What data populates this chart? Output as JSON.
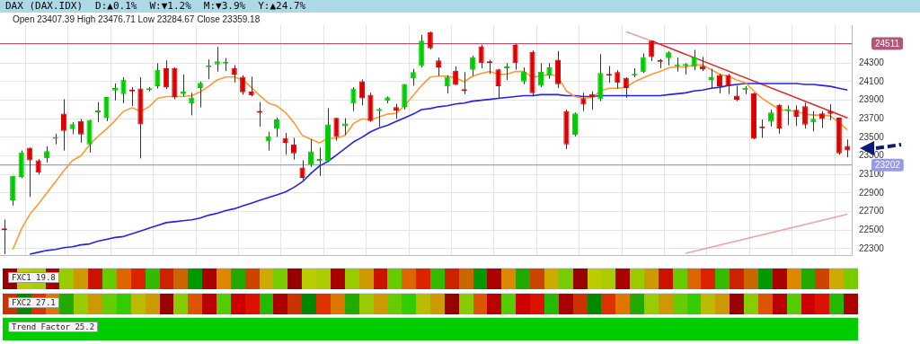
{
  "chart_data": [
    {
      "type": "candlestick",
      "title": "DAX (DAX.IDX)",
      "subtitle": "Open 23407.39  High 23476.71  Low 23284.67  Close 23359.18",
      "annotations": [
        "D:▲0.1%",
        "W:▼1.2%",
        "M:▼3.9%",
        "Y:▲24.7%"
      ],
      "categories": [
        null,
        null,
        null,
        null,
        null,
        null,
        null,
        null,
        null,
        null,
        null,
        null,
        null,
        null,
        null,
        null,
        null,
        null,
        null,
        null,
        null,
        null,
        null,
        null,
        null,
        null,
        null,
        null,
        null,
        null,
        null,
        null,
        null,
        null,
        null,
        null,
        null,
        null,
        null,
        null,
        null,
        null,
        null,
        null,
        null,
        null,
        null,
        null,
        null,
        null,
        null,
        null,
        null,
        null,
        null,
        null,
        null,
        null,
        null,
        null,
        null,
        null,
        null,
        null,
        null,
        null,
        null,
        null,
        null,
        null,
        null,
        null,
        null,
        null,
        null,
        null,
        null,
        null,
        null,
        null,
        null,
        null,
        null,
        null,
        null,
        null,
        null,
        null,
        null,
        null,
        null,
        null,
        null,
        null,
        null,
        null,
        null,
        null,
        null,
        null
      ],
      "ohlc": [
        [
          22516,
          22613,
          22240,
          22498
        ],
        [
          22820,
          23084,
          22765,
          23084
        ],
        [
          23072,
          23358,
          23060,
          23336
        ],
        [
          23388,
          23390,
          22856,
          23251
        ],
        [
          23251,
          23266,
          23099,
          23120
        ],
        [
          23273,
          23403,
          23230,
          23352
        ],
        [
          23485,
          23540,
          23425,
          23497
        ],
        [
          23756,
          23911,
          23358,
          23570
        ],
        [
          23589,
          23662,
          23534,
          23641
        ],
        [
          23677,
          23698,
          23443,
          23531
        ],
        [
          23424,
          23689,
          23336,
          23689
        ],
        [
          23770,
          23880,
          23662,
          23778
        ],
        [
          23710,
          23935,
          23674,
          23935
        ],
        [
          24005,
          24081,
          23899,
          24032
        ],
        [
          23966,
          24148,
          23868,
          24121
        ],
        [
          24014,
          24042,
          23838,
          23996
        ],
        [
          24026,
          24148,
          23273,
          23640
        ],
        [
          24011,
          24042,
          23996,
          24029
        ],
        [
          24051,
          24300,
          24026,
          24227
        ],
        [
          24245,
          24330,
          24020,
          24039
        ],
        [
          24248,
          24254,
          23911,
          23929
        ],
        [
          23966,
          24178,
          23941,
          23993
        ],
        [
          23865,
          23981,
          23738,
          23929
        ],
        [
          24032,
          24102,
          23823,
          24087
        ],
        [
          24257,
          24340,
          24127,
          24270
        ],
        [
          24285,
          24476,
          24209,
          24321
        ],
        [
          24295,
          24355,
          24215,
          24305
        ],
        [
          24248,
          24279,
          24093,
          24178
        ],
        [
          24154,
          24169,
          23960,
          23987
        ],
        [
          23993,
          24154,
          23941,
          23953
        ],
        [
          23770,
          23880,
          23616,
          23765
        ],
        [
          23455,
          23561,
          23358,
          23510
        ],
        [
          23592,
          23713,
          23504,
          23692
        ],
        [
          23491,
          23549,
          23312,
          23440
        ],
        [
          23424,
          23494,
          23260,
          23327
        ],
        [
          23175,
          23251,
          23038,
          23063
        ],
        [
          23206,
          23479,
          23181,
          23348
        ],
        [
          23248,
          23388,
          23084,
          23266
        ],
        [
          23245,
          23814,
          23245,
          23640
        ],
        [
          23710,
          23710,
          23464,
          23504
        ],
        [
          23619,
          23707,
          23525,
          23649
        ],
        [
          23865,
          24042,
          23783,
          24026
        ],
        [
          24105,
          24124,
          23844,
          23920
        ],
        [
          23960,
          23981,
          23668,
          23677
        ],
        [
          23785,
          23820,
          23616,
          23797
        ],
        [
          23896,
          23941,
          23868,
          23932
        ],
        [
          23826,
          23862,
          23698,
          23789
        ],
        [
          23829,
          24075,
          23799,
          24075
        ],
        [
          24136,
          24239,
          24057,
          24203
        ],
        [
          24270,
          24604,
          24254,
          24543
        ],
        [
          24634,
          24640,
          24446,
          24461
        ],
        [
          24330,
          24361,
          24163,
          24254
        ],
        [
          24048,
          24169,
          23972,
          24154
        ],
        [
          24218,
          24264,
          24063,
          24066
        ],
        [
          24005,
          24203,
          23966,
          24000
        ],
        [
          24227,
          24382,
          24163,
          24367
        ],
        [
          24482,
          24498,
          24245,
          24300
        ],
        [
          24306,
          24336,
          24184,
          24300
        ],
        [
          24233,
          24239,
          23920,
          24051
        ],
        [
          24245,
          24300,
          24118,
          24254
        ],
        [
          24498,
          24507,
          24230,
          24300
        ],
        [
          24102,
          24254,
          24072,
          24209
        ],
        [
          24422,
          24437,
          23941,
          23975
        ],
        [
          24057,
          24300,
          24042,
          24209
        ],
        [
          24163,
          24300,
          24133,
          24254
        ],
        [
          24336,
          24431,
          24032,
          24072
        ],
        [
          23783,
          23799,
          23373,
          23424
        ],
        [
          23525,
          23768,
          23510,
          23759
        ],
        [
          23920,
          23981,
          23783,
          23853
        ],
        [
          23966,
          23996,
          23798,
          23929
        ],
        [
          23911,
          24397,
          23890,
          24194
        ],
        [
          24175,
          24270,
          24087,
          24165
        ],
        [
          24203,
          24224,
          24026,
          24087
        ],
        [
          24142,
          24148,
          23926,
          24032
        ],
        [
          24166,
          24245,
          24148,
          24184
        ],
        [
          24203,
          24406,
          24194,
          24367
        ],
        [
          24543,
          24543,
          24321,
          24367
        ],
        [
          24325,
          24346,
          24245,
          24315
        ],
        [
          24355,
          24428,
          24276,
          24416
        ],
        [
          24267,
          24361,
          24209,
          24273
        ],
        [
          24270,
          24300,
          24178,
          24291
        ],
        [
          24260,
          24443,
          24224,
          24361
        ],
        [
          24270,
          24367,
          24215,
          24233
        ],
        [
          24118,
          24239,
          24032,
          24148
        ],
        [
          24172,
          24184,
          23972,
          24051
        ],
        [
          24172,
          24184,
          23966,
          24051
        ],
        [
          23950,
          24057,
          23890,
          23905
        ],
        [
          24011,
          24051,
          23966,
          24033
        ],
        [
          23975,
          23981,
          23479,
          23485
        ],
        [
          23607,
          23692,
          23494,
          23598
        ],
        [
          23668,
          23799,
          23616,
          23768
        ],
        [
          23850,
          23859,
          23540,
          23595
        ],
        [
          23785,
          23844,
          23631,
          23790
        ],
        [
          23798,
          23844,
          23622,
          23722
        ],
        [
          23835,
          23874,
          23595,
          23637
        ],
        [
          23662,
          23783,
          23564,
          23701
        ],
        [
          23759,
          23783,
          23601,
          23698
        ],
        [
          23783,
          23859,
          23686,
          23753
        ],
        [
          23713,
          23713,
          23312,
          23327
        ],
        [
          23407.39,
          23476.71,
          23284.67,
          23359.18
        ]
      ],
      "colors": [
        "#dd0000",
        "#00cc00",
        "#00cc00",
        "#dd0000",
        "#dd0000",
        "#00cc00",
        "#00cc00",
        "#dd0000",
        "#00cc00",
        "#dd0000",
        "#00cc00",
        "#00cc00",
        "#00cc00",
        "#00cc00",
        "#00cc00",
        "#dd0000",
        "#dd0000",
        "#00cc00",
        "#00cc00",
        "#dd0000",
        "#dd0000",
        "#00cc00",
        "#00cc00",
        "#00cc00",
        "#00cc00",
        "#00cc00",
        "#00cc00",
        "#dd0000",
        "#dd0000",
        "#dd0000",
        "#dd0000",
        "#00cc00",
        "#00cc00",
        "#dd0000",
        "#dd0000",
        "#dd0000",
        "#00cc00",
        "#00cc00",
        "#00cc00",
        "#dd0000",
        "#00cc00",
        "#00cc00",
        "#dd0000",
        "#dd0000",
        "#00cc00",
        "#00cc00",
        "#dd0000",
        "#00cc00",
        "#00cc00",
        "#00cc00",
        "#dd0000",
        "#dd0000",
        "#00cc00",
        "#dd0000",
        "#dd0000",
        "#00cc00",
        "#dd0000",
        "#dd0000",
        "#dd0000",
        "#00cc00",
        "#dd0000",
        "#00cc00",
        "#dd0000",
        "#00cc00",
        "#00cc00",
        "#dd0000",
        "#dd0000",
        "#00cc00",
        "#dd0000",
        "#dd0000",
        "#00cc00",
        "#dd0000",
        "#dd0000",
        "#dd0000",
        "#00cc00",
        "#00cc00",
        "#dd0000",
        "#dd0000",
        "#00cc00",
        "#00cc00",
        "#00cc00",
        "#00cc00",
        "#dd0000",
        "#00cc00",
        "#dd0000",
        "#dd0000",
        "#dd0000",
        "#00cc00",
        "#dd0000",
        "#dd0000",
        "#00cc00",
        "#dd0000",
        "#00cc00",
        "#dd0000",
        "#dd0000",
        "#00cc00",
        "#dd0000",
        "#dd0000",
        "#dd0000",
        "#dd0000"
      ],
      "series": [
        {
          "type": "line",
          "color": "#ff9933",
          "values": [
            null,
            22290,
            22510,
            22670,
            22780,
            22900,
            23020,
            23140,
            23250,
            23300,
            23420,
            23510,
            23590,
            23680,
            23780,
            23820,
            23780,
            23830,
            23920,
            23940,
            23940,
            23940,
            23950,
            23990,
            24050,
            24120,
            24150,
            24150,
            24120,
            24040,
            23950,
            23870,
            23840,
            23770,
            23660,
            23520,
            23480,
            23440,
            23490,
            23490,
            23520,
            23650,
            23700,
            23690,
            23720,
            23750,
            23760,
            23840,
            23950,
            24060,
            24150,
            24160,
            24160,
            24140,
            24100,
            24160,
            24190,
            24210,
            24180,
            24180,
            24210,
            24210,
            24150,
            24160,
            24180,
            24160,
            24000,
            23940,
            23920,
            23930,
            24000,
            24030,
            24030,
            24040,
            24100,
            24140,
            24180,
            24210,
            24250,
            24260,
            24260,
            24280,
            24280,
            24230,
            24180,
            24160,
            24120,
            24090,
            24000,
            23920,
            23860,
            23800,
            23790,
            23780,
            23750,
            23740,
            23740,
            23730,
            23660,
            23580
          ]
        },
        {
          "type": "line",
          "color": "#2222ee",
          "values": [
            null,
            null,
            null,
            22240,
            22260,
            22280,
            22290,
            22310,
            22320,
            22340,
            22350,
            22380,
            22400,
            22420,
            22430,
            22460,
            22490,
            22520,
            22550,
            22580,
            22590,
            22600,
            22610,
            22630,
            22660,
            22680,
            22710,
            22730,
            22760,
            22790,
            22820,
            22850,
            22880,
            22910,
            22960,
            23020,
            23110,
            23190,
            23240,
            23310,
            23380,
            23450,
            23500,
            23560,
            23600,
            23630,
            23670,
            23710,
            23750,
            23800,
            23810,
            23830,
            23840,
            23860,
            23870,
            23890,
            23900,
            23910,
            23920,
            23930,
            23940,
            23950,
            23950,
            23960,
            23960,
            23960,
            23950,
            23950,
            23940,
            23940,
            23950,
            23950,
            23950,
            23950,
            23950,
            23950,
            23950,
            23950,
            23960,
            23970,
            23980,
            24000,
            24010,
            24030,
            24040,
            24060,
            24070,
            24080,
            24080,
            24080,
            24080,
            24080,
            24080,
            24080,
            24070,
            24070,
            24060,
            24050,
            24030,
            24010
          ]
        },
        {
          "type": "line",
          "color": "#f4a0a0",
          "values": [
            null,
            null,
            null,
            null,
            null,
            null,
            null,
            null,
            null,
            null,
            null,
            null,
            null,
            null,
            null,
            null,
            null,
            null,
            null,
            null,
            null,
            null,
            null,
            null,
            null,
            null,
            null,
            null,
            null,
            null,
            null,
            null,
            null,
            null,
            null,
            null,
            null,
            null,
            null,
            null,
            null,
            null,
            null,
            null,
            null,
            null,
            null,
            null,
            null,
            null,
            null,
            null,
            null,
            null,
            null,
            null,
            null,
            null,
            null,
            null,
            null,
            null,
            null,
            null,
            null,
            null,
            null,
            null,
            null,
            null,
            null,
            null,
            null,
            24640,
            null,
            null,
            24540,
            null,
            null,
            null,
            null,
            null,
            null,
            null,
            null,
            null,
            null,
            null,
            null,
            null,
            null,
            null,
            null,
            null,
            null,
            null,
            null,
            null,
            null,
            null
          ]
        },
        {
          "type": "line",
          "color": "#e02828",
          "values": [
            null,
            null,
            null,
            null,
            null,
            null,
            null,
            null,
            null,
            null,
            null,
            null,
            null,
            null,
            null,
            null,
            null,
            null,
            null,
            null,
            null,
            null,
            null,
            null,
            null,
            null,
            null,
            null,
            null,
            null,
            null,
            null,
            null,
            null,
            null,
            null,
            null,
            null,
            null,
            null,
            null,
            null,
            null,
            null,
            null,
            null,
            null,
            null,
            null,
            null,
            null,
            null,
            null,
            null,
            null,
            null,
            null,
            null,
            null,
            null,
            null,
            null,
            null,
            null,
            null,
            null,
            null,
            null,
            null,
            null,
            null,
            null,
            null,
            null,
            null,
            null,
            24540,
            null,
            null,
            null,
            null,
            null,
            null,
            null,
            null,
            null,
            null,
            null,
            null,
            null,
            null,
            null,
            null,
            null,
            null,
            null,
            null,
            null,
            null,
            23710
          ]
        },
        {
          "type": "line",
          "color": "#f4a0a0",
          "values": [
            null,
            null,
            null,
            null,
            null,
            null,
            null,
            null,
            null,
            null,
            null,
            null,
            null,
            null,
            null,
            null,
            null,
            null,
            null,
            null,
            null,
            null,
            null,
            null,
            null,
            null,
            null,
            null,
            null,
            null,
            null,
            null,
            null,
            null,
            null,
            null,
            null,
            null,
            null,
            null,
            null,
            null,
            null,
            null,
            null,
            null,
            null,
            null,
            null,
            null,
            null,
            null,
            null,
            null,
            null,
            null,
            null,
            null,
            null,
            null,
            null,
            null,
            null,
            null,
            null,
            null,
            null,
            null,
            null,
            null,
            null,
            null,
            null,
            null,
            null,
            null,
            null,
            null,
            null,
            null,
            22250,
            null,
            null,
            null,
            null,
            null,
            null,
            null,
            null,
            null,
            null,
            null,
            null,
            null,
            null,
            null,
            null,
            null,
            null,
            22670
          ]
        }
      ],
      "ylim": [
        22230,
        24710
      ],
      "yticks": [
        22300,
        22500,
        22700,
        22900,
        23100,
        23300,
        23500,
        23700,
        23900,
        24100,
        24300
      ],
      "ref_lines": [
        {
          "axis": "y",
          "value": 24511,
          "label": "24511",
          "color": "#b05878"
        },
        {
          "axis": "y",
          "value": 23202,
          "label": "23202",
          "color": "#9999ee"
        }
      ],
      "grid": true,
      "tick_labels": "y"
    },
    {
      "type": "other",
      "title": "FXC1 19.8"
    },
    {
      "type": "other",
      "title": "FXC2 27.1"
    },
    {
      "type": "other",
      "title": "Trend Factor 25.2"
    }
  ]
}
